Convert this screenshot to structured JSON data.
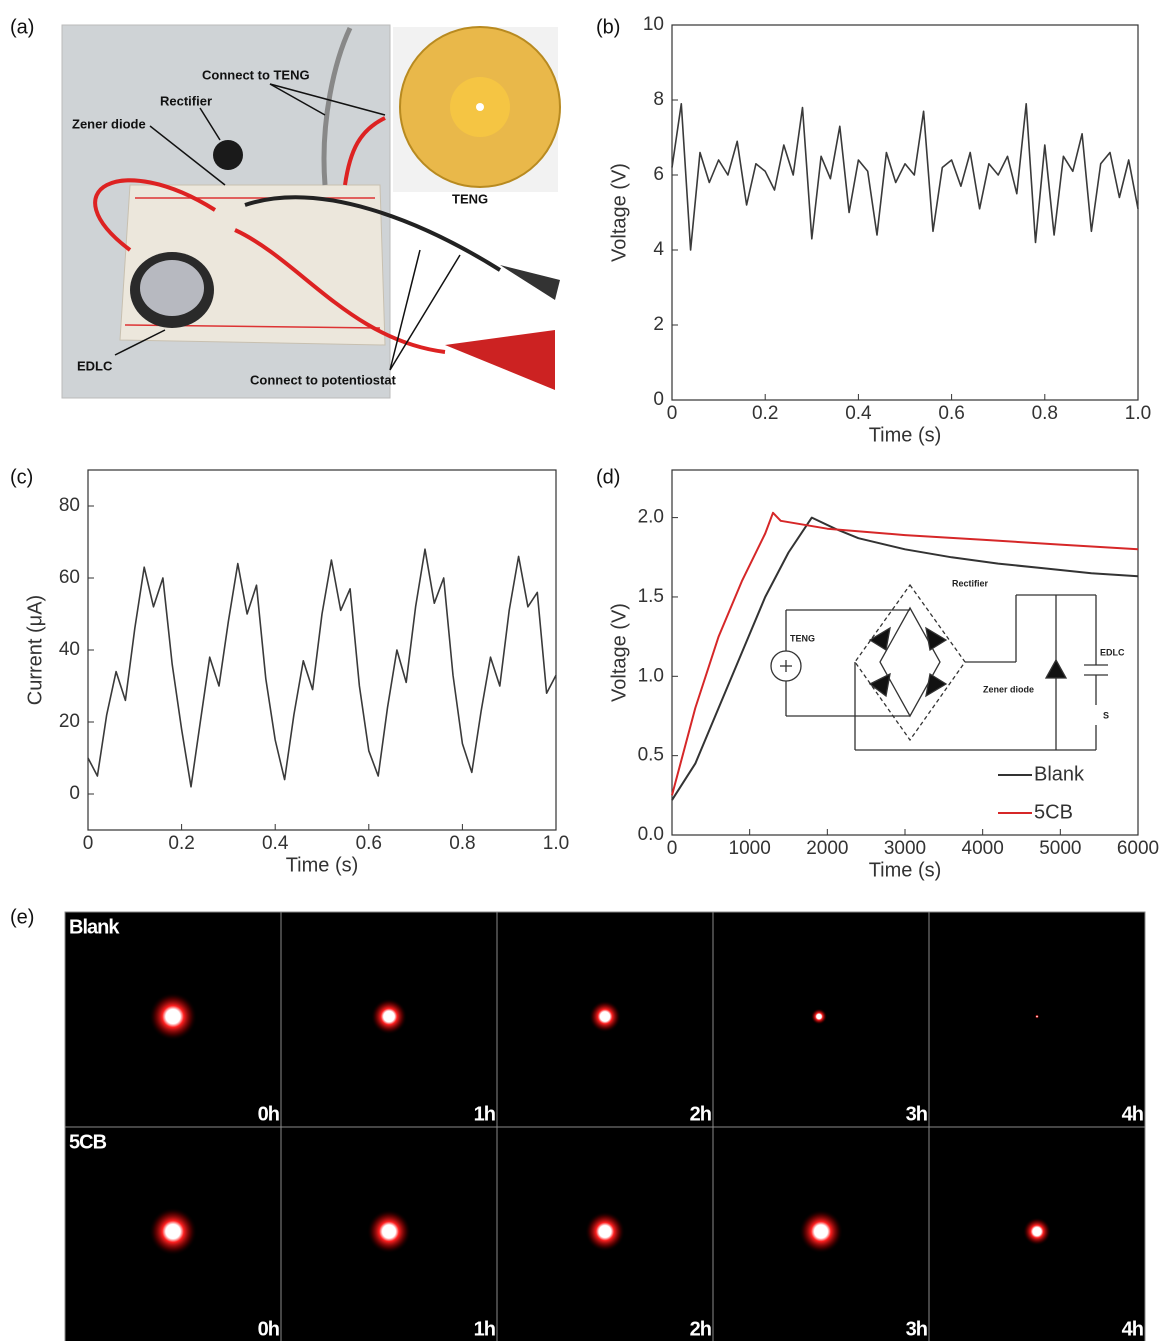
{
  "panel_labels": [
    "(a)",
    "(b)",
    "(c)",
    "(d)",
    "(e)"
  ],
  "photo": {
    "labels": [
      "Connect to TENG",
      "Rectifier",
      "Zener diode",
      "TENG",
      "EDLC",
      "Connect to potentiostat"
    ]
  },
  "circuit": {
    "labels": [
      "Rectifier",
      "TENG",
      "EDLC",
      "Zener diode",
      "S"
    ]
  },
  "glow_grid": {
    "rows": [
      "Blank",
      "5CB"
    ],
    "times": [
      "0h",
      "1h",
      "2h",
      "3h",
      "4h"
    ]
  },
  "chart_data": [
    {
      "type": "line",
      "x_label": "Time (s)",
      "y_label": "Voltage (V)",
      "color": "#3a3a3a",
      "x": [
        0,
        0.02,
        0.04,
        0.06,
        0.08,
        0.1,
        0.12,
        0.14,
        0.16,
        0.18,
        0.2,
        0.22,
        0.24,
        0.26,
        0.28,
        0.3,
        0.32,
        0.34,
        0.36,
        0.38,
        0.4,
        0.42,
        0.44,
        0.46,
        0.48,
        0.5,
        0.52,
        0.54,
        0.56,
        0.58,
        0.6,
        0.62,
        0.64,
        0.66,
        0.68,
        0.7,
        0.72,
        0.74,
        0.76,
        0.78,
        0.8,
        0.82,
        0.84,
        0.86,
        0.88,
        0.9,
        0.92,
        0.94,
        0.96,
        0.98,
        1.0
      ],
      "values": [
        6.2,
        7.9,
        4.0,
        6.6,
        5.8,
        6.4,
        6.0,
        6.9,
        5.2,
        6.3,
        6.1,
        5.6,
        6.8,
        6.0,
        7.8,
        4.3,
        6.5,
        5.9,
        7.3,
        5.0,
        6.4,
        6.1,
        4.4,
        6.6,
        5.8,
        6.3,
        6.0,
        7.7,
        4.5,
        6.2,
        6.4,
        5.7,
        6.6,
        5.1,
        6.3,
        6.0,
        6.5,
        5.5,
        7.9,
        4.2,
        6.8,
        4.4,
        6.5,
        6.1,
        7.1,
        4.5,
        6.3,
        6.6,
        5.4,
        6.4,
        5.1
      ],
      "xlim": [
        0,
        1
      ],
      "ylim": [
        0,
        10
      ],
      "xticks": [
        0,
        0.2,
        0.4,
        0.6,
        0.8,
        {
          "value": 1,
          "label": "1.0"
        }
      ],
      "yticks": [
        0,
        2,
        4,
        6,
        8,
        10
      ]
    },
    {
      "type": "line",
      "x_label": "Time (s)",
      "y_label": "Current (μA)",
      "color": "#3a3a3a",
      "x": [
        0,
        0.02,
        0.04,
        0.06,
        0.08,
        0.1,
        0.12,
        0.14,
        0.16,
        0.18,
        0.2,
        0.22,
        0.24,
        0.26,
        0.28,
        0.3,
        0.32,
        0.34,
        0.36,
        0.38,
        0.4,
        0.42,
        0.44,
        0.46,
        0.48,
        0.5,
        0.52,
        0.54,
        0.56,
        0.58,
        0.6,
        0.62,
        0.64,
        0.66,
        0.68,
        0.7,
        0.72,
        0.74,
        0.76,
        0.78,
        0.8,
        0.82,
        0.84,
        0.86,
        0.88,
        0.9,
        0.92,
        0.94,
        0.96,
        0.98,
        1.0
      ],
      "values": [
        10,
        5,
        22,
        34,
        26,
        46,
        63,
        52,
        60,
        36,
        18,
        2,
        20,
        38,
        30,
        48,
        64,
        50,
        58,
        32,
        15,
        4,
        22,
        37,
        29,
        50,
        65,
        51,
        57,
        30,
        12,
        5,
        24,
        40,
        31,
        52,
        68,
        53,
        60,
        33,
        14,
        6,
        23,
        38,
        30,
        51,
        66,
        52,
        56,
        28,
        33
      ],
      "xlim": [
        0,
        1
      ],
      "ylim": [
        -10,
        90
      ],
      "xticks": [
        0,
        0.2,
        0.4,
        0.6,
        0.8,
        {
          "value": 1,
          "label": "1.0"
        }
      ],
      "yticks": [
        0,
        20,
        40,
        60,
        80
      ]
    },
    {
      "type": "line",
      "x_label": "Time (s)",
      "y_label": "Voltage (V)",
      "legend": "lower right",
      "series": [
        {
          "name": "Blank",
          "color": "#333333",
          "x": [
            0,
            300,
            600,
            900,
            1200,
            1500,
            1800,
            2100,
            2400,
            3000,
            3600,
            4200,
            4800,
            5400,
            6000
          ],
          "values": [
            0.22,
            0.45,
            0.8,
            1.15,
            1.5,
            1.78,
            2.0,
            1.93,
            1.87,
            1.8,
            1.75,
            1.71,
            1.68,
            1.65,
            1.63
          ]
        },
        {
          "name": "5CB",
          "color": "#d62728",
          "x": [
            0,
            300,
            600,
            900,
            1200,
            1300,
            1400,
            2000,
            3000,
            4000,
            5000,
            6000
          ],
          "values": [
            0.25,
            0.8,
            1.25,
            1.6,
            1.9,
            2.03,
            1.98,
            1.93,
            1.89,
            1.86,
            1.83,
            1.8
          ]
        }
      ],
      "xlim": [
        0,
        6000
      ],
      "ylim": [
        0,
        2.3
      ],
      "xticks": [
        0,
        1000,
        2000,
        3000,
        4000,
        5000,
        6000
      ],
      "yticks": [
        {
          "value": 0,
          "label": "0.0"
        },
        0.5,
        {
          "value": 1,
          "label": "1.0"
        },
        1.5,
        {
          "value": 2,
          "label": "2.0"
        }
      ]
    }
  ]
}
